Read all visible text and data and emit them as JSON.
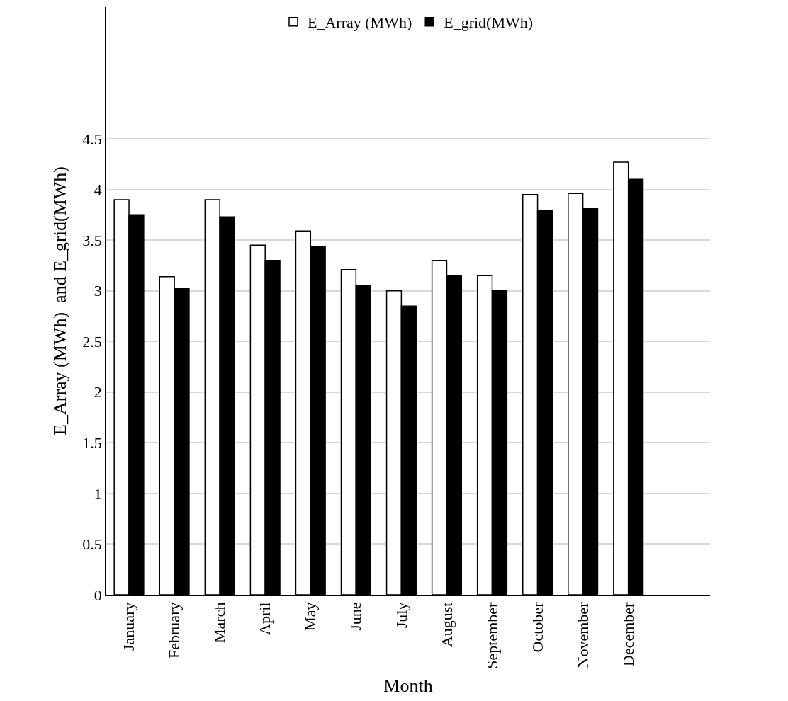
{
  "chart_data": {
    "type": "bar",
    "xlabel": "Month",
    "ylabel": "E_Array (MWh)  and E_grid(MWh)",
    "categories": [
      "January",
      "February",
      "March",
      "April",
      "May",
      "June",
      "July",
      "August",
      "September",
      "October",
      "November",
      "December"
    ],
    "series": [
      {
        "name": "E_Array (MWh)",
        "color": "#ffffff",
        "values": [
          3.9,
          3.14,
          3.9,
          3.45,
          3.59,
          3.21,
          3.0,
          3.3,
          3.15,
          3.95,
          3.96,
          4.27
        ]
      },
      {
        "name": "E_grid(MWh)",
        "color": "#000000",
        "values": [
          3.75,
          3.02,
          3.73,
          3.3,
          3.44,
          3.05,
          2.85,
          3.15,
          3.0,
          3.79,
          3.81,
          4.1
        ]
      }
    ],
    "ylim": [
      0,
      5.8
    ],
    "yticks": [
      0,
      0.5,
      1,
      1.5,
      2,
      2.5,
      3,
      3.5,
      4,
      4.5
    ],
    "grid": "y",
    "legend": "top"
  }
}
